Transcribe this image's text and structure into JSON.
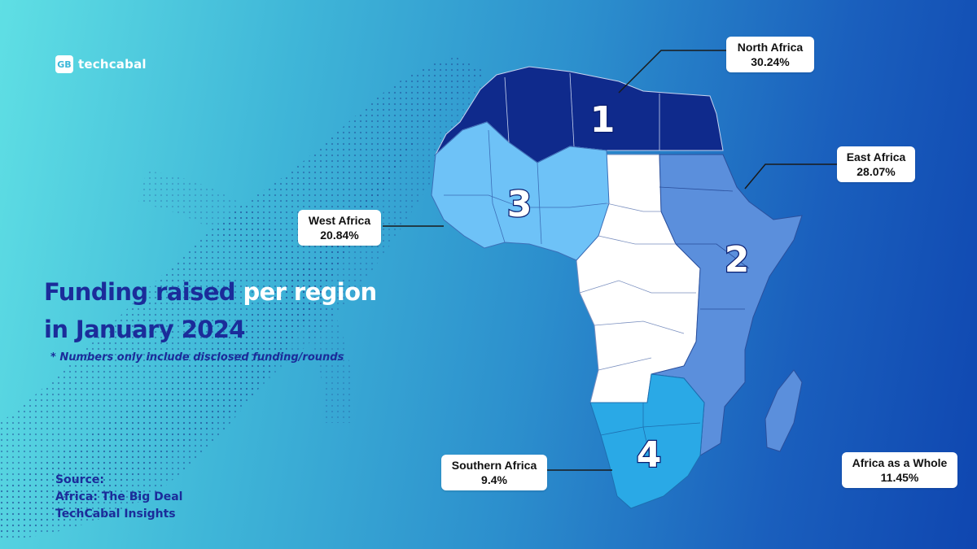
{
  "brand": {
    "logo_mark": "GB",
    "logo_text": "techcabal"
  },
  "headline": {
    "part1": "Funding raised ",
    "part2": "per region",
    "line2": "in January 2024"
  },
  "footnote": "* Numbers only include disclosed funding/rounds",
  "source": {
    "label": "Source:",
    "line1": "Africa: The Big Deal",
    "line2": "TechCabal Insights"
  },
  "regions": [
    {
      "rank": "1",
      "name": "North Africa",
      "value": "30.24%",
      "color": "#0f2a8c"
    },
    {
      "rank": "2",
      "name": "East Africa",
      "value": "28.07%",
      "color": "#5b8fdc"
    },
    {
      "rank": "3",
      "name": "West Africa",
      "value": "20.84%",
      "color": "#6ec2f7"
    },
    {
      "rank": "4",
      "name": "Southern Africa",
      "value": "9.4%",
      "color": "#2aa9e6"
    }
  ],
  "whole": {
    "name": "Africa as a Whole",
    "value": "11.45%"
  },
  "colors": {
    "headline": "#1b2c9a",
    "central_africa": "#ffffff",
    "number_badge": "#ffffff"
  }
}
